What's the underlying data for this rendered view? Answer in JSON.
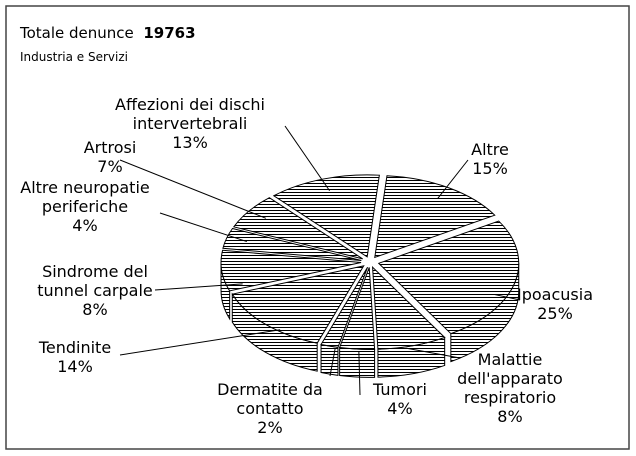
{
  "chart_data": {
    "type": "pie3d",
    "title": "Totale denunce",
    "total": 19763,
    "subtitle": "Industria e Servizi",
    "categories": [
      "Altre",
      "Ipoacusia",
      "Malattie dell'apparato respiratorio",
      "Tumori",
      "Dermatite da contatto",
      "Tendinite",
      "Sindrome del tunnel carpale",
      "Altre neuropatie periferiche",
      "Artrosi",
      "Affezioni dei dischi intervertebrali"
    ],
    "values": [
      15,
      25,
      8,
      4,
      2,
      14,
      8,
      4,
      7,
      13
    ],
    "value_labels": [
      "15%",
      "25%",
      "8%",
      "4%",
      "2%",
      "14%",
      "8%",
      "4%",
      "7%",
      "13%"
    ],
    "color": "#000000"
  }
}
